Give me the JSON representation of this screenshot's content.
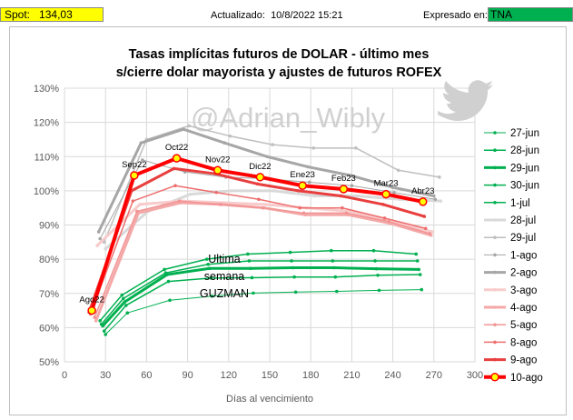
{
  "header": {
    "spot_label": "Spot:",
    "spot_value": "134,03",
    "updated_label": "Actualizado:",
    "updated_value": "10/8/2022 15:21",
    "expressed_label": "Expresado en:",
    "expressed_value": "TNA"
  },
  "colors": {
    "spot_bg": "#ffff00",
    "tna_bg": "#00b050",
    "latest_series": "#ff0000",
    "latest_marker": "#ffff00"
  },
  "watermark": "@Adrian_Wibly",
  "watermark_icon": "twitter-bird-icon",
  "annotation_lines": [
    "Ultima",
    "semana",
    "GUZMAN"
  ],
  "chart_data": {
    "type": "line",
    "title": [
      "Tasas implícitas futuros de DOLAR - último mes",
      "s/cierre dolar mayorista y ajustes de futuros ROFEX"
    ],
    "xlabel": "Días al vencimiento",
    "ylabel": "",
    "xlim": [
      0,
      300
    ],
    "ylim": [
      50,
      130
    ],
    "xticks": [
      0,
      30,
      60,
      90,
      120,
      150,
      180,
      210,
      240,
      270,
      300
    ],
    "yticks": [
      50,
      60,
      70,
      80,
      90,
      100,
      110,
      120,
      130
    ],
    "x_tick_labels": [
      "0",
      "30",
      "60",
      "90",
      "120",
      "150",
      "180",
      "210",
      "240",
      "270",
      "300"
    ],
    "y_tick_labels": [
      "50%",
      "60%",
      "70%",
      "80%",
      "90%",
      "100%",
      "110%",
      "120%",
      "130%"
    ],
    "grid": true,
    "legend_position": "right",
    "series": [
      {
        "name": "27-jun",
        "color": "#00b050",
        "width": 1,
        "x": [
          30,
          46,
          77,
          108,
          138,
          169,
          199,
          230,
          261
        ],
        "y": [
          58,
          64.3,
          68,
          69.2,
          70.1,
          70.4,
          70.6,
          70.9,
          71.1
        ]
      },
      {
        "name": "28-jun",
        "color": "#00b050",
        "width": 1.5,
        "x": [
          29,
          45,
          76,
          107,
          137,
          168,
          198,
          229,
          260
        ],
        "y": [
          59,
          66.5,
          73.5,
          74.5,
          74.6,
          74.8,
          74.8,
          75.3,
          75.5
        ]
      },
      {
        "name": "29-jun",
        "color": "#00b050",
        "width": 3,
        "x": [
          28,
          44,
          75,
          106,
          136,
          167,
          197,
          228,
          259
        ],
        "y": [
          60.5,
          67.5,
          75.5,
          77.3,
          77.3,
          77.5,
          77.5,
          77.2,
          77
        ]
      },
      {
        "name": "30-jun",
        "color": "#00b050",
        "width": 1.5,
        "x": [
          27,
          43,
          74,
          105,
          135,
          166,
          196,
          227,
          258
        ],
        "y": [
          61,
          68.5,
          76,
          78.5,
          79.5,
          79.5,
          79.5,
          79.5,
          79.5
        ]
      },
      {
        "name": "1-jul",
        "color": "#00b050",
        "width": 1.5,
        "x": [
          26,
          42,
          73,
          104,
          134,
          165,
          195,
          226,
          257
        ],
        "y": [
          62,
          69.5,
          77,
          80,
          81.5,
          82,
          82.5,
          82.5,
          81.5
        ]
      },
      {
        "name": "28-jul",
        "color": "#d9d9d9",
        "width": 3,
        "x": [
          30,
          61,
          92,
          122,
          153,
          183,
          214,
          245,
          275
        ],
        "y": [
          83,
          94,
          99,
          100,
          100,
          98.5,
          98.5,
          97.5,
          97
        ]
      },
      {
        "name": "29-jul",
        "color": "#bfbfbf",
        "width": 1.5,
        "x": [
          29,
          60,
          91,
          121,
          152,
          182,
          213,
          244,
          274
        ],
        "y": [
          85,
          115,
          119,
          116,
          113.5,
          112.5,
          112.5,
          106,
          104
        ]
      },
      {
        "name": "1-ago",
        "color": "#a6a6a6",
        "width": 1,
        "x": [
          26,
          57,
          88,
          118,
          149,
          179,
          210,
          241,
          271
        ],
        "y": [
          86,
          109,
          105.5,
          104,
          103.5,
          102.5,
          101.5,
          99.5,
          97.5
        ]
      },
      {
        "name": "2-ago",
        "color": "#a6a6a6",
        "width": 3,
        "x": [
          25,
          56,
          87,
          117,
          148,
          178,
          209,
          240,
          270
        ],
        "y": [
          88,
          114,
          118,
          114,
          110,
          107,
          104.5,
          101,
          98.5
        ]
      },
      {
        "name": "3-ago",
        "color": "#f8cbcb",
        "width": 3,
        "x": [
          24,
          55,
          86,
          116,
          147,
          177,
          208,
          239,
          269
        ],
        "y": [
          84,
          96,
          97,
          96.5,
          96,
          95,
          94,
          91,
          88
        ]
      },
      {
        "name": "4-ago",
        "color": "#f4a8a8",
        "width": 3,
        "x": [
          23,
          54,
          85,
          115,
          146,
          176,
          207,
          238,
          268
        ],
        "y": [
          62,
          93.5,
          96.5,
          96,
          95,
          93,
          93,
          90.5,
          87
        ]
      },
      {
        "name": "5-ago",
        "color": "#f29494",
        "width": 1.5,
        "x": [
          22,
          53,
          84,
          114,
          145,
          175,
          206,
          237,
          267
        ],
        "y": [
          63,
          94,
          97,
          96,
          95,
          93.5,
          93.5,
          91,
          87.5
        ]
      },
      {
        "name": "8-ago",
        "color": "#ee6e6e",
        "width": 1.5,
        "x": [
          19,
          50,
          81,
          111,
          142,
          172,
          203,
          234,
          264
        ],
        "y": [
          64,
          97,
          101.5,
          99.5,
          97.5,
          95,
          95,
          92,
          89
        ]
      },
      {
        "name": "9-ago",
        "color": "#e83e3e",
        "width": 3,
        "x": [
          18,
          49,
          80,
          110,
          141,
          171,
          202,
          233,
          263
        ],
        "y": [
          64.5,
          100,
          106.5,
          105,
          102,
          100,
          98.5,
          96,
          92.5
        ]
      },
      {
        "name": "10-ago",
        "color": "#ff0000",
        "width": 4,
        "markers": true,
        "x": [
          20,
          51,
          82,
          112,
          143,
          174,
          204,
          235,
          262
        ],
        "y": [
          65,
          104.5,
          109.5,
          106,
          104,
          101.5,
          100.5,
          99,
          96.8
        ],
        "labels": [
          "Ago22",
          "Sep22",
          "Oct22",
          "Nov22",
          "Dic22",
          "Ene23",
          "Feb23",
          "Mar23",
          "Abr23"
        ]
      }
    ]
  }
}
